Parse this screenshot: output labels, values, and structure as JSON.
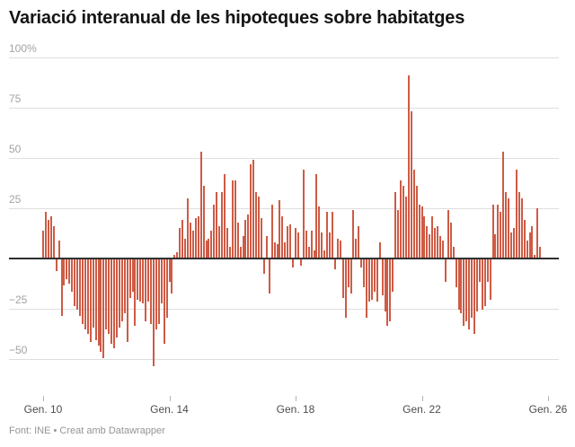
{
  "header": {
    "title": "Variació interanual de les hipoteques sobre habitatges"
  },
  "footer": {
    "text": "Font: INE • Creat amb Datawrapper"
  },
  "colors": {
    "bar": "#ce5b45",
    "baseline": "#2f2f2f",
    "gridline": "#dedede",
    "y_label": "#a2a2a2",
    "x_label": "#4d4d4d",
    "background": "#ffffff"
  },
  "chart_data": {
    "type": "bar",
    "title": "Variació interanual de les hipoteques sobre habitatges",
    "xlabel": "",
    "ylabel": "",
    "unit": "%",
    "frequency": "monthly",
    "start_month": "2010-01",
    "end_month": "2025-10",
    "grid": "horizontal",
    "legend": "none",
    "ylim": [
      -60,
      105
    ],
    "y_axis": {
      "baseline": 0,
      "ticks": [
        {
          "value": 100,
          "label": "100%"
        },
        {
          "value": 75,
          "label": "75"
        },
        {
          "value": 50,
          "label": "50"
        },
        {
          "value": 25,
          "label": "25"
        },
        {
          "value": -25,
          "label": "−25"
        },
        {
          "value": -50,
          "label": "−50"
        }
      ]
    },
    "x_axis": {
      "ticks": [
        {
          "label": "Gen. 10",
          "month_index": 0
        },
        {
          "label": "Gen. 14",
          "month_index": 48
        },
        {
          "label": "Gen. 18",
          "month_index": 96
        },
        {
          "label": "Gen. 22",
          "month_index": 144
        },
        {
          "label": "Gen. 26",
          "month_index": 192
        }
      ]
    },
    "values": [
      14,
      23,
      19,
      21,
      16,
      -6,
      9,
      -28,
      -13,
      -10,
      -12,
      -16,
      -23,
      -25,
      -28,
      -32,
      -35,
      -37,
      -41,
      -34,
      -40,
      -43,
      -46,
      -49,
      -35,
      -37,
      -42,
      -44,
      -39,
      -34,
      -31,
      -27,
      -41,
      -19,
      -16,
      -33,
      -20,
      -21,
      -22,
      -31,
      -21,
      -32,
      -53,
      -35,
      -32,
      -22,
      -42,
      -29,
      -11,
      -17,
      2,
      3,
      15,
      19,
      10,
      30,
      18,
      14,
      20,
      21,
      53,
      36,
      9,
      10,
      14,
      27,
      33,
      16,
      33,
      42,
      15,
      6,
      39,
      39,
      18,
      6,
      11,
      19,
      22,
      47,
      49,
      33,
      31,
      20,
      -7,
      11,
      -17,
      27,
      8,
      7,
      29,
      21,
      8,
      16,
      17,
      -4,
      15,
      13,
      -3,
      44,
      14,
      6,
      14,
      4,
      42,
      26,
      13,
      4,
      23,
      13,
      23,
      -5,
      10,
      9,
      -19,
      -29,
      -14,
      -17,
      24,
      10,
      16,
      -4,
      -14,
      -29,
      -21,
      -20,
      -16,
      -21,
      8,
      -18,
      -26,
      -33,
      -31,
      -16,
      33,
      24,
      39,
      36,
      31,
      91,
      73,
      44,
      36,
      27,
      26,
      21,
      16,
      12,
      21,
      15,
      16,
      11,
      9,
      -11,
      24,
      18,
      6,
      -14,
      -25,
      -27,
      -33,
      -31,
      -35,
      -29,
      -37,
      -26,
      -11,
      -25,
      -23,
      -11,
      -20,
      27,
      12,
      27,
      23,
      53,
      33,
      30,
      13,
      15,
      44,
      33,
      30,
      19,
      9,
      13,
      16,
      2,
      25,
      6
    ]
  },
  "layout_note": "monthly year-over-year % change bars, Jan 2010 to Oct 2025"
}
